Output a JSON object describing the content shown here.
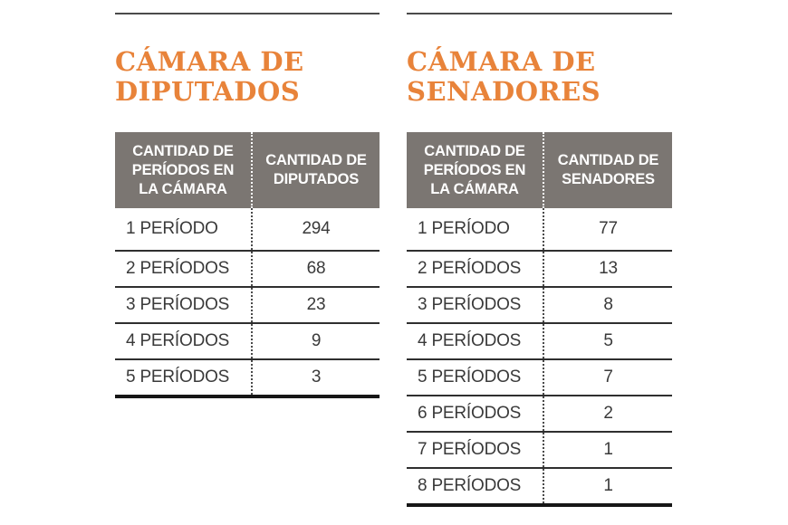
{
  "colors": {
    "accent_orange": "#E8833A",
    "header_gray": "#7B7672",
    "header_text": "#FFFFFF",
    "body_text": "#3A3A3A",
    "rule_dark": "#2F2F2F"
  },
  "panels": [
    {
      "title_display": "CÁMARA DE\nDIPUTADOS",
      "col1_display": "CANTIDAD DE\nPERÍODOS EN\nLA CÁMARA",
      "col2_display": "CANTIDAD DE\nDIPUTADOS"
    },
    {
      "title_display": "CÁMARA DE\nSENADORES",
      "col1_display": "CANTIDAD DE\nPERÍODOS EN\nLA CÁMARA",
      "col2_display": "CANTIDAD DE\nSENADORES"
    }
  ],
  "chart_data": [
    {
      "type": "table",
      "title": "CÁMARA DE DIPUTADOS",
      "columns": [
        "CANTIDAD DE PERÍODOS EN LA CÁMARA",
        "CANTIDAD DE DIPUTADOS"
      ],
      "rows": [
        [
          "1 PERÍODO",
          294
        ],
        [
          "2 PERÍODOS",
          68
        ],
        [
          "3 PERÍODOS",
          23
        ],
        [
          "4 PERÍODOS",
          9
        ],
        [
          "5 PERÍODOS",
          3
        ]
      ]
    },
    {
      "type": "table",
      "title": "CÁMARA DE SENADORES",
      "columns": [
        "CANTIDAD DE PERÍODOS EN LA CÁMARA",
        "CANTIDAD DE SENADORES"
      ],
      "rows": [
        [
          "1 PERÍODO",
          77
        ],
        [
          "2 PERÍODOS",
          13
        ],
        [
          "3 PERÍODOS",
          8
        ],
        [
          "4 PERÍODOS",
          5
        ],
        [
          "5 PERÍODOS",
          7
        ],
        [
          "6 PERÍODOS",
          2
        ],
        [
          "7 PERÍODOS",
          1
        ],
        [
          "8 PERÍODOS",
          1
        ]
      ]
    }
  ]
}
